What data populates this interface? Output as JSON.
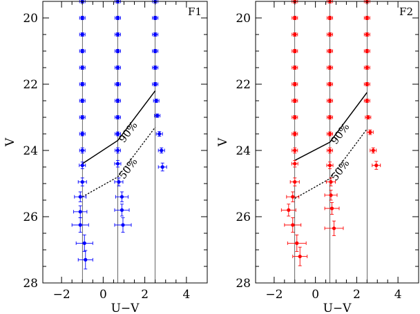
{
  "figure": {
    "panels": [
      "F1",
      "F2"
    ]
  },
  "chart_data": [
    {
      "type": "scatter",
      "label": "F1",
      "xlabel": "U−V",
      "ylabel": "V",
      "xlim": [
        -2.9,
        5
      ],
      "ylim": [
        28,
        19.5
      ],
      "y_inverted": true,
      "xticks": [
        "−2",
        "0",
        "2",
        "4"
      ],
      "xtick_values": [
        -2,
        0,
        2,
        4
      ],
      "yticks": [
        "20",
        "22",
        "24",
        "26",
        "28"
      ],
      "ytick_values": [
        20,
        22,
        24,
        26,
        28
      ],
      "color": "#0000ff",
      "reference_lines_x": [
        -1.0,
        0.7,
        2.5
      ],
      "completeness": [
        {
          "label": "90%",
          "style": "solid",
          "points": [
            [
              -1.0,
              24.4
            ],
            [
              0.7,
              23.7
            ],
            [
              2.5,
              22.2
            ]
          ]
        },
        {
          "label": "50%",
          "style": "dashed",
          "points": [
            [
              -1.0,
              25.4
            ],
            [
              0.7,
              24.8
            ],
            [
              2.5,
              23.3
            ]
          ]
        }
      ],
      "series": [
        {
          "points": [
            {
              "x": -1.0,
              "y": 19.5,
              "xerr": 0.05,
              "yerr": 0.02
            },
            {
              "x": -1.0,
              "y": 20.0,
              "xerr": 0.05,
              "yerr": 0.02
            },
            {
              "x": -1.0,
              "y": 20.5,
              "xerr": 0.05,
              "yerr": 0.02
            },
            {
              "x": -1.0,
              "y": 21.0,
              "xerr": 0.05,
              "yerr": 0.02
            },
            {
              "x": -1.0,
              "y": 21.5,
              "xerr": 0.05,
              "yerr": 0.03
            },
            {
              "x": -1.0,
              "y": 22.0,
              "xerr": 0.06,
              "yerr": 0.03
            },
            {
              "x": -1.0,
              "y": 22.5,
              "xerr": 0.07,
              "yerr": 0.04
            },
            {
              "x": -1.0,
              "y": 23.0,
              "xerr": 0.08,
              "yerr": 0.05
            },
            {
              "x": -1.0,
              "y": 23.5,
              "xerr": 0.1,
              "yerr": 0.06
            },
            {
              "x": -1.0,
              "y": 24.0,
              "xerr": 0.12,
              "yerr": 0.08
            },
            {
              "x": -1.0,
              "y": 24.45,
              "xerr": 0.15,
              "yerr": 0.1
            },
            {
              "x": -1.0,
              "y": 24.95,
              "xerr": 0.2,
              "yerr": 0.12
            },
            {
              "x": -1.1,
              "y": 25.4,
              "xerr": 0.28,
              "yerr": 0.15
            },
            {
              "x": -1.1,
              "y": 25.85,
              "xerr": 0.32,
              "yerr": 0.18
            },
            {
              "x": -1.1,
              "y": 26.25,
              "xerr": 0.4,
              "yerr": 0.22
            },
            {
              "x": -0.9,
              "y": 26.8,
              "xerr": 0.4,
              "yerr": 0.25
            },
            {
              "x": -0.85,
              "y": 27.3,
              "xerr": 0.35,
              "yerr": 0.28
            }
          ]
        },
        {
          "points": [
            {
              "x": 0.7,
              "y": 19.5,
              "xerr": 0.05,
              "yerr": 0.02
            },
            {
              "x": 0.7,
              "y": 20.0,
              "xerr": 0.05,
              "yerr": 0.02
            },
            {
              "x": 0.7,
              "y": 20.5,
              "xerr": 0.05,
              "yerr": 0.02
            },
            {
              "x": 0.7,
              "y": 21.0,
              "xerr": 0.05,
              "yerr": 0.02
            },
            {
              "x": 0.7,
              "y": 21.5,
              "xerr": 0.06,
              "yerr": 0.03
            },
            {
              "x": 0.7,
              "y": 22.0,
              "xerr": 0.06,
              "yerr": 0.03
            },
            {
              "x": 0.7,
              "y": 22.5,
              "xerr": 0.07,
              "yerr": 0.04
            },
            {
              "x": 0.7,
              "y": 23.0,
              "xerr": 0.08,
              "yerr": 0.05
            },
            {
              "x": 0.7,
              "y": 23.5,
              "xerr": 0.1,
              "yerr": 0.06
            },
            {
              "x": 0.7,
              "y": 24.0,
              "xerr": 0.12,
              "yerr": 0.08
            },
            {
              "x": 0.7,
              "y": 24.4,
              "xerr": 0.15,
              "yerr": 0.1
            },
            {
              "x": 0.75,
              "y": 24.95,
              "xerr": 0.2,
              "yerr": 0.12
            },
            {
              "x": 0.9,
              "y": 25.4,
              "xerr": 0.3,
              "yerr": 0.15
            },
            {
              "x": 0.9,
              "y": 25.8,
              "xerr": 0.35,
              "yerr": 0.18
            },
            {
              "x": 0.95,
              "y": 26.25,
              "xerr": 0.4,
              "yerr": 0.22
            }
          ]
        },
        {
          "points": [
            {
              "x": 2.5,
              "y": 19.5,
              "xerr": 0.05,
              "yerr": 0.02
            },
            {
              "x": 2.5,
              "y": 20.0,
              "xerr": 0.05,
              "yerr": 0.02
            },
            {
              "x": 2.5,
              "y": 20.5,
              "xerr": 0.05,
              "yerr": 0.02
            },
            {
              "x": 2.5,
              "y": 21.0,
              "xerr": 0.05,
              "yerr": 0.02
            },
            {
              "x": 2.5,
              "y": 21.5,
              "xerr": 0.06,
              "yerr": 0.03
            },
            {
              "x": 2.5,
              "y": 22.0,
              "xerr": 0.07,
              "yerr": 0.03
            },
            {
              "x": 2.55,
              "y": 22.5,
              "xerr": 0.08,
              "yerr": 0.04
            },
            {
              "x": 2.6,
              "y": 22.95,
              "xerr": 0.12,
              "yerr": 0.05
            },
            {
              "x": 2.7,
              "y": 23.5,
              "xerr": 0.15,
              "yerr": 0.07
            },
            {
              "x": 2.8,
              "y": 24.0,
              "xerr": 0.15,
              "yerr": 0.08
            },
            {
              "x": 2.85,
              "y": 24.5,
              "xerr": 0.2,
              "yerr": 0.12
            }
          ]
        }
      ]
    },
    {
      "type": "scatter",
      "label": "F2",
      "xlabel": "U−V",
      "ylabel": "V",
      "xlim": [
        -2.9,
        5
      ],
      "ylim": [
        28,
        19.5
      ],
      "y_inverted": true,
      "xticks": [
        "−2",
        "0",
        "2",
        "4"
      ],
      "xtick_values": [
        -2,
        0,
        2,
        4
      ],
      "yticks": [
        "20",
        "22",
        "24",
        "26",
        "28"
      ],
      "ytick_values": [
        20,
        22,
        24,
        26,
        28
      ],
      "color": "#ff0000",
      "reference_lines_x": [
        -1.0,
        0.7,
        2.5
      ],
      "completeness": [
        {
          "label": "90%",
          "style": "solid",
          "points": [
            [
              -1.0,
              24.3
            ],
            [
              0.7,
              23.75
            ],
            [
              2.5,
              22.25
            ]
          ]
        },
        {
          "label": "50%",
          "style": "dashed",
          "points": [
            [
              -1.0,
              25.45
            ],
            [
              0.7,
              24.85
            ],
            [
              2.5,
              23.35
            ]
          ]
        }
      ],
      "series": [
        {
          "points": [
            {
              "x": -1.0,
              "y": 19.5,
              "xerr": 0.05,
              "yerr": 0.02
            },
            {
              "x": -1.0,
              "y": 20.0,
              "xerr": 0.05,
              "yerr": 0.02
            },
            {
              "x": -1.0,
              "y": 20.5,
              "xerr": 0.05,
              "yerr": 0.02
            },
            {
              "x": -1.0,
              "y": 21.0,
              "xerr": 0.05,
              "yerr": 0.02
            },
            {
              "x": -1.0,
              "y": 21.5,
              "xerr": 0.05,
              "yerr": 0.03
            },
            {
              "x": -1.0,
              "y": 22.0,
              "xerr": 0.06,
              "yerr": 0.03
            },
            {
              "x": -1.0,
              "y": 22.5,
              "xerr": 0.07,
              "yerr": 0.04
            },
            {
              "x": -1.0,
              "y": 23.0,
              "xerr": 0.08,
              "yerr": 0.05
            },
            {
              "x": -1.0,
              "y": 23.5,
              "xerr": 0.1,
              "yerr": 0.06
            },
            {
              "x": -1.0,
              "y": 24.0,
              "xerr": 0.12,
              "yerr": 0.08
            },
            {
              "x": -1.0,
              "y": 24.4,
              "xerr": 0.15,
              "yerr": 0.1
            },
            {
              "x": -1.0,
              "y": 24.95,
              "xerr": 0.22,
              "yerr": 0.12
            },
            {
              "x": -1.1,
              "y": 25.4,
              "xerr": 0.3,
              "yerr": 0.15
            },
            {
              "x": -1.3,
              "y": 25.8,
              "xerr": 0.35,
              "yerr": 0.18
            },
            {
              "x": -1.1,
              "y": 26.25,
              "xerr": 0.4,
              "yerr": 0.22
            },
            {
              "x": -0.9,
              "y": 26.8,
              "xerr": 0.45,
              "yerr": 0.25
            },
            {
              "x": -0.75,
              "y": 27.2,
              "xerr": 0.35,
              "yerr": 0.28
            }
          ]
        },
        {
          "points": [
            {
              "x": 0.7,
              "y": 19.5,
              "xerr": 0.05,
              "yerr": 0.02
            },
            {
              "x": 0.7,
              "y": 20.0,
              "xerr": 0.05,
              "yerr": 0.02
            },
            {
              "x": 0.7,
              "y": 20.5,
              "xerr": 0.05,
              "yerr": 0.02
            },
            {
              "x": 0.7,
              "y": 21.0,
              "xerr": 0.05,
              "yerr": 0.02
            },
            {
              "x": 0.7,
              "y": 21.5,
              "xerr": 0.06,
              "yerr": 0.03
            },
            {
              "x": 0.7,
              "y": 22.0,
              "xerr": 0.06,
              "yerr": 0.03
            },
            {
              "x": 0.7,
              "y": 22.5,
              "xerr": 0.07,
              "yerr": 0.04
            },
            {
              "x": 0.7,
              "y": 23.0,
              "xerr": 0.08,
              "yerr": 0.05
            },
            {
              "x": 0.7,
              "y": 23.5,
              "xerr": 0.1,
              "yerr": 0.06
            },
            {
              "x": 0.7,
              "y": 24.0,
              "xerr": 0.12,
              "yerr": 0.08
            },
            {
              "x": 0.7,
              "y": 24.45,
              "xerr": 0.15,
              "yerr": 0.1
            },
            {
              "x": 0.75,
              "y": 24.95,
              "xerr": 0.22,
              "yerr": 0.12
            },
            {
              "x": 0.75,
              "y": 25.35,
              "xerr": 0.3,
              "yerr": 0.15
            },
            {
              "x": 0.8,
              "y": 25.75,
              "xerr": 0.35,
              "yerr": 0.18
            },
            {
              "x": 0.9,
              "y": 26.35,
              "xerr": 0.45,
              "yerr": 0.22
            }
          ]
        },
        {
          "points": [
            {
              "x": 2.5,
              "y": 19.5,
              "xerr": 0.05,
              "yerr": 0.02
            },
            {
              "x": 2.5,
              "y": 20.0,
              "xerr": 0.05,
              "yerr": 0.02
            },
            {
              "x": 2.5,
              "y": 20.5,
              "xerr": 0.05,
              "yerr": 0.02
            },
            {
              "x": 2.5,
              "y": 21.0,
              "xerr": 0.05,
              "yerr": 0.02
            },
            {
              "x": 2.5,
              "y": 21.5,
              "xerr": 0.06,
              "yerr": 0.03
            },
            {
              "x": 2.5,
              "y": 22.0,
              "xerr": 0.07,
              "yerr": 0.03
            },
            {
              "x": 2.5,
              "y": 22.5,
              "xerr": 0.08,
              "yerr": 0.04
            },
            {
              "x": 2.55,
              "y": 23.0,
              "xerr": 0.1,
              "yerr": 0.05
            },
            {
              "x": 2.65,
              "y": 23.45,
              "xerr": 0.15,
              "yerr": 0.07
            },
            {
              "x": 2.8,
              "y": 24.0,
              "xerr": 0.15,
              "yerr": 0.08
            },
            {
              "x": 2.95,
              "y": 24.45,
              "xerr": 0.2,
              "yerr": 0.12
            }
          ]
        }
      ]
    }
  ]
}
